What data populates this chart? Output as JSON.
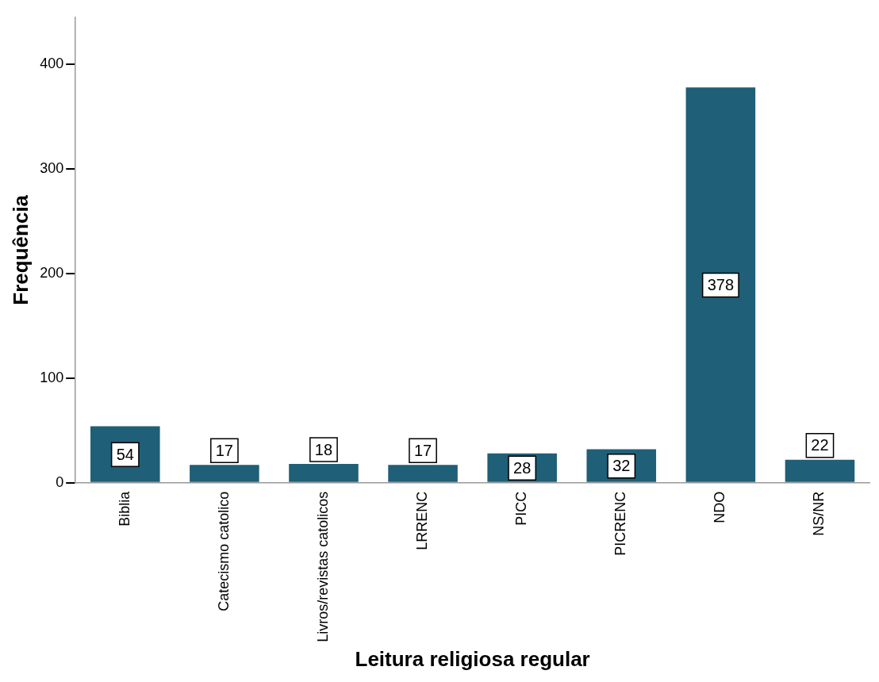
{
  "chart_data": {
    "type": "bar",
    "xlabel": "Leitura religiosa regular",
    "ylabel": "Frequência",
    "categories": [
      "Biblia",
      "Catecismo catolico",
      "Livros/revistas catolicos",
      "LRRENC",
      "PICC",
      "PICRENC",
      "NDO",
      "NS/NR"
    ],
    "values": [
      54,
      17,
      18,
      17,
      28,
      32,
      378,
      22
    ],
    "color": "#1f5f77",
    "ylim": [
      0,
      445
    ],
    "yticks": [
      0,
      100,
      200,
      300,
      400
    ],
    "grid": false,
    "data_labels": true
  }
}
